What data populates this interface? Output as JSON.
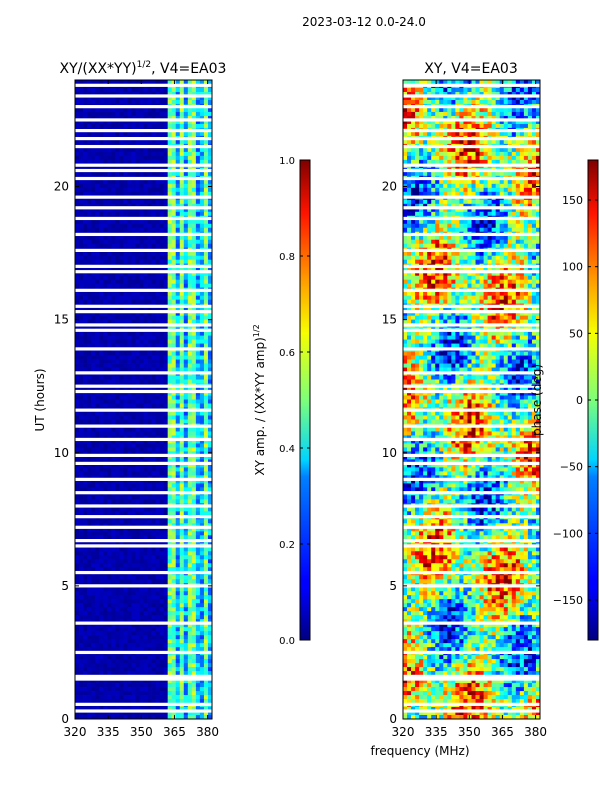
{
  "figure": {
    "suptitle": "2023-03-12 0.0-24.0",
    "shared_xlabel": "frequency (MHz)"
  },
  "chart_data": [
    {
      "type": "heatmap",
      "title_main": "XY/(XX*YY)",
      "title_sup": "1/2",
      "title_rest": ", V4=EA03",
      "xlabel": "",
      "ylabel": "UT (hours)",
      "xlim": [
        320,
        382
      ],
      "ylim": [
        0,
        24
      ],
      "xticks": [
        320,
        335,
        350,
        365,
        380
      ],
      "xtick_labels": [
        "320",
        "335",
        "350",
        "365",
        "380"
      ],
      "yticks": [
        0,
        5,
        10,
        15,
        20
      ],
      "ytick_labels": [
        "0",
        "5",
        "10",
        "15",
        "20"
      ],
      "bright_columns_mhz": [
        364,
        368,
        373,
        379
      ],
      "colorbar": {
        "label_main": "XY amp. / (XX*YY amp)",
        "label_sup": "1/2",
        "min": 0.0,
        "max": 1.0,
        "ticks": [
          0.0,
          0.2,
          0.4,
          0.6,
          0.8,
          1.0
        ],
        "tick_labels": [
          "0.0",
          "0.2",
          "0.4",
          "0.6",
          "0.8",
          "1.0"
        ],
        "colormap": "jet"
      }
    },
    {
      "type": "heatmap",
      "title_main": "XY, V4=EA03",
      "xlabel": "frequency (MHz)",
      "ylabel": "",
      "xlim": [
        320,
        382
      ],
      "ylim": [
        0,
        24
      ],
      "xticks": [
        320,
        335,
        350,
        365,
        380
      ],
      "xtick_labels": [
        "320",
        "335",
        "350",
        "365",
        "380"
      ],
      "yticks": [
        0,
        5,
        10,
        15,
        20
      ],
      "ytick_labels": [
        "0",
        "5",
        "10",
        "15",
        "20"
      ],
      "colorbar": {
        "label_main": "phase (deg)",
        "min": -180,
        "max": 180,
        "ticks": [
          -150,
          -100,
          -50,
          0,
          50,
          100,
          150
        ],
        "tick_labels": [
          "−150",
          "−100",
          "−50",
          "0",
          "50",
          "100",
          "150"
        ],
        "colormap": "jet"
      }
    }
  ],
  "flagged_rows_ut": [
    0.3,
    0.55,
    1.5,
    1.6,
    2.5,
    3.6,
    5.0,
    5.5,
    6.5,
    6.7,
    7.2,
    7.6,
    8.0,
    8.5,
    9.0,
    9.6,
    9.9,
    10.5,
    11.0,
    11.6,
    12.3,
    12.5,
    13.0,
    13.9,
    14.6,
    14.8,
    15.3,
    15.5,
    16.1,
    16.8,
    17.0,
    17.6,
    18.2,
    18.8,
    19.2,
    19.6,
    20.3,
    20.6,
    20.8,
    21.5,
    21.8,
    22.1,
    22.5,
    23.0,
    23.4,
    23.8
  ]
}
